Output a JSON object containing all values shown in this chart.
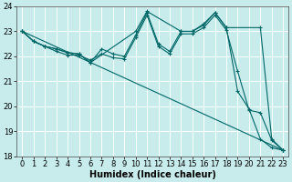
{
  "xlabel": "Humidex (Indice chaleur)",
  "xlim": [
    -0.5,
    23.5
  ],
  "ylim": [
    18,
    24
  ],
  "xticks": [
    0,
    1,
    2,
    3,
    4,
    5,
    6,
    7,
    8,
    9,
    10,
    11,
    12,
    13,
    14,
    15,
    16,
    17,
    18,
    19,
    20,
    21,
    22,
    23
  ],
  "yticks": [
    18,
    19,
    20,
    21,
    22,
    23,
    24
  ],
  "bg_color": "#c8ecec",
  "grid_color": "#ffffff",
  "line_color": "#006666",
  "line1": {
    "x": [
      0,
      1,
      2,
      3,
      4,
      5,
      6,
      7,
      8,
      9,
      10,
      11,
      12,
      13,
      14,
      15,
      16,
      17,
      18,
      19,
      20,
      21,
      22,
      23
    ],
    "y": [
      23.0,
      22.6,
      22.4,
      22.3,
      22.15,
      22.1,
      21.75,
      22.3,
      22.1,
      22.0,
      22.85,
      23.75,
      22.5,
      22.2,
      23.0,
      23.0,
      23.3,
      23.75,
      23.15,
      20.6,
      19.9,
      18.7,
      18.35,
      18.25
    ]
  },
  "line2": {
    "x": [
      0,
      1,
      2,
      3,
      4,
      5,
      6,
      10,
      11,
      14,
      15,
      16,
      17,
      18,
      21,
      22,
      23
    ],
    "y": [
      23.0,
      22.6,
      22.4,
      22.3,
      22.15,
      22.1,
      21.75,
      23.0,
      23.8,
      23.0,
      23.0,
      23.25,
      23.75,
      23.15,
      23.15,
      18.7,
      18.25
    ]
  },
  "line3": {
    "x": [
      0,
      1,
      2,
      3,
      4,
      5,
      6,
      7,
      8,
      9,
      10,
      11,
      12,
      13,
      14,
      15,
      16,
      17,
      18,
      19,
      20,
      21,
      22,
      23
    ],
    "y": [
      23.0,
      22.6,
      22.4,
      22.2,
      22.05,
      22.05,
      21.85,
      22.1,
      21.95,
      21.9,
      22.75,
      23.65,
      22.4,
      22.1,
      22.9,
      22.9,
      23.15,
      23.65,
      23.05,
      21.4,
      19.85,
      19.75,
      18.65,
      18.25
    ]
  },
  "line4": {
    "x": [
      0,
      23
    ],
    "y": [
      23.0,
      18.25
    ]
  },
  "font_size": 7,
  "tick_font_size": 6
}
